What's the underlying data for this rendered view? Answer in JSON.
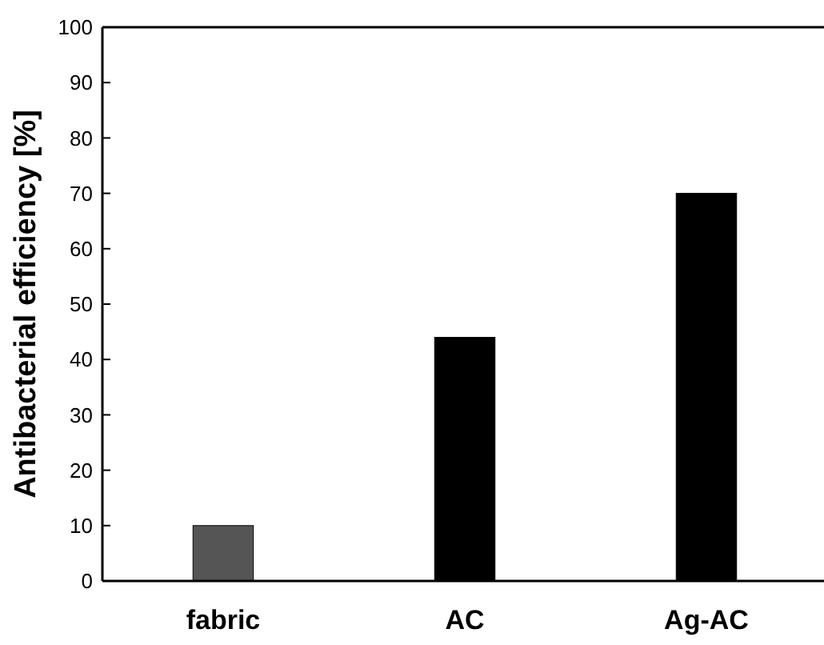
{
  "chart_data": {
    "type": "bar",
    "ylabel": "Antibacterial efficiency [%]",
    "categories": [
      "fabric",
      "AC",
      "Ag-AC"
    ],
    "values": [
      10,
      44,
      70
    ],
    "colors": [
      "#555555",
      "#000000",
      "#000000"
    ],
    "ylim": [
      0,
      100
    ],
    "yticks": [
      0,
      10,
      20,
      30,
      40,
      50,
      60,
      70,
      80,
      90,
      100
    ]
  }
}
